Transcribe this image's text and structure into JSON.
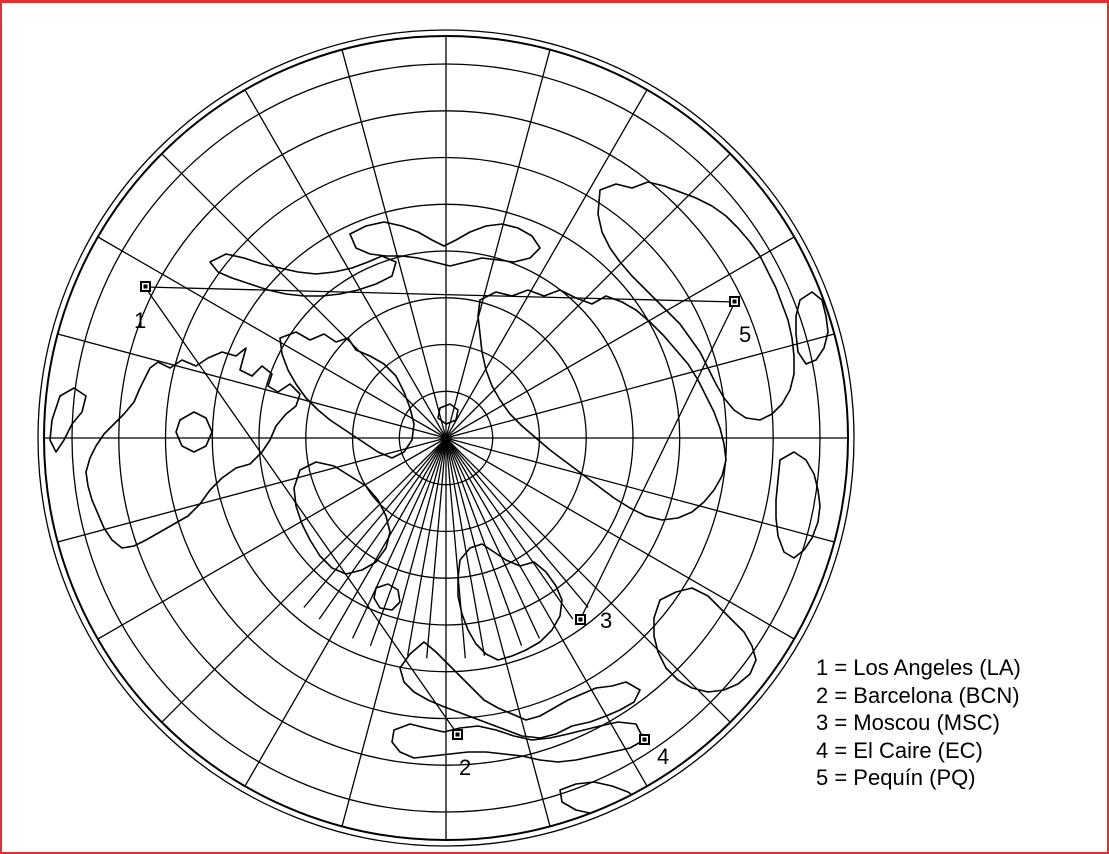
{
  "map": {
    "projection": "azimuthal-polar-north",
    "frame_color": "#e03030",
    "line_color": "#000000",
    "background": "#ffffff"
  },
  "cities": [
    {
      "id": "1",
      "label": "1",
      "name": "Los Angeles (LA)"
    },
    {
      "id": "2",
      "label": "2",
      "name": "Barcelona (BCN)"
    },
    {
      "id": "3",
      "label": "3",
      "name": "Moscou (MSC)"
    },
    {
      "id": "4",
      "label": "4",
      "name": "El Caire (EC)"
    },
    {
      "id": "5",
      "label": "5",
      "name": "Pequín (PQ)"
    }
  ],
  "legend": {
    "items": [
      "1 = Los Angeles (LA)",
      "2 = Barcelona (BCN)",
      "3 = Moscou (MSC)",
      "4 = El Caire (EC)",
      "5 = Pequín (PQ)"
    ]
  }
}
